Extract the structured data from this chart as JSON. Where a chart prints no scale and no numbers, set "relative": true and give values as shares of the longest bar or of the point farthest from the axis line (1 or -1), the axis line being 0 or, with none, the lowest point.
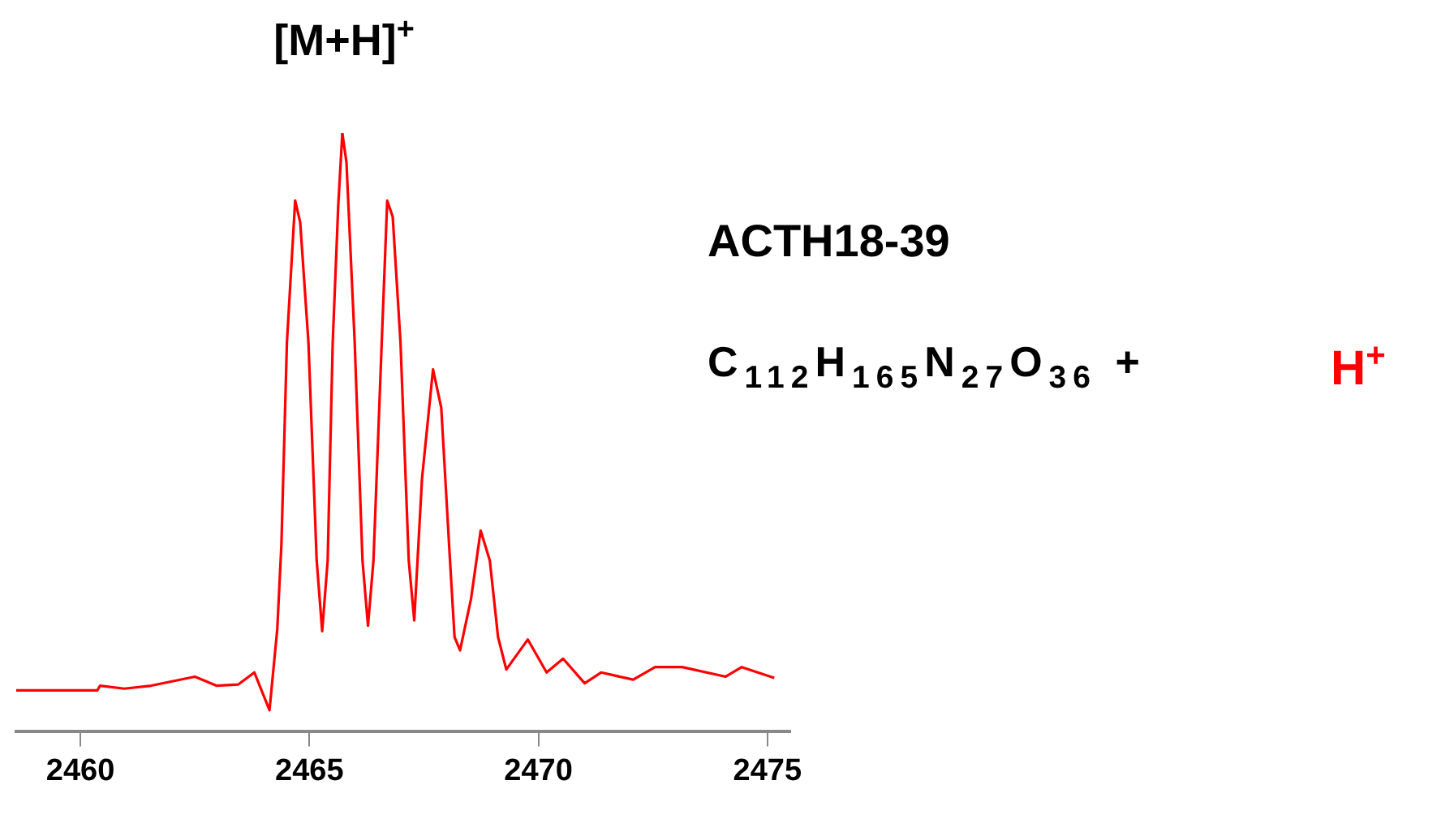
{
  "chart_data": {
    "type": "line",
    "title": "[M+H]$^{+}$",
    "annotations": [
      "ACTH18-39",
      "C$_{112}$H$_{165}$N$_{27}$O$_{36}$ +",
      "H$^{+}$"
    ],
    "relative": true,
    "xlim": [
      2458.6,
      2475.5
    ],
    "xticks": [
      2460,
      2465,
      2470,
      2475
    ],
    "grid": false,
    "legend": false,
    "marker": "none",
    "x": [
      2458.6,
      2460.37,
      2460.43,
      2460.96,
      2461.55,
      2462.5,
      2462.97,
      2463.45,
      2463.8,
      2464.13,
      2464.3,
      2464.39,
      2464.51,
      2464.69,
      2464.8,
      2464.98,
      2465.16,
      2465.28,
      2465.4,
      2465.51,
      2465.63,
      2465.72,
      2465.81,
      2465.99,
      2466.16,
      2466.28,
      2466.4,
      2466.58,
      2466.7,
      2466.82,
      2466.99,
      2467.17,
      2467.29,
      2467.46,
      2467.7,
      2467.88,
      2468.05,
      2468.17,
      2468.29,
      2468.53,
      2468.74,
      2468.94,
      2469.12,
      2469.3,
      2469.77,
      2470.18,
      2470.54,
      2471.01,
      2471.37,
      2472.07,
      2472.55,
      2473.14,
      2474.09,
      2474.44,
      2475.15
    ],
    "series": [
      {
        "color": "#ff0000",
        "values": [
          0.069,
          0.069,
          0.077,
          0.072,
          0.077,
          0.092,
          0.077,
          0.079,
          0.099,
          0.036,
          0.172,
          0.313,
          0.65,
          0.887,
          0.851,
          0.65,
          0.286,
          0.168,
          0.286,
          0.65,
          0.878,
          1.0,
          0.951,
          0.65,
          0.286,
          0.177,
          0.286,
          0.65,
          0.887,
          0.86,
          0.65,
          0.286,
          0.186,
          0.423,
          0.605,
          0.541,
          0.313,
          0.158,
          0.136,
          0.222,
          0.336,
          0.286,
          0.158,
          0.104,
          0.154,
          0.099,
          0.122,
          0.081,
          0.099,
          0.087,
          0.108,
          0.108,
          0.092,
          0.108,
          0.09
        ]
      }
    ]
  }
}
